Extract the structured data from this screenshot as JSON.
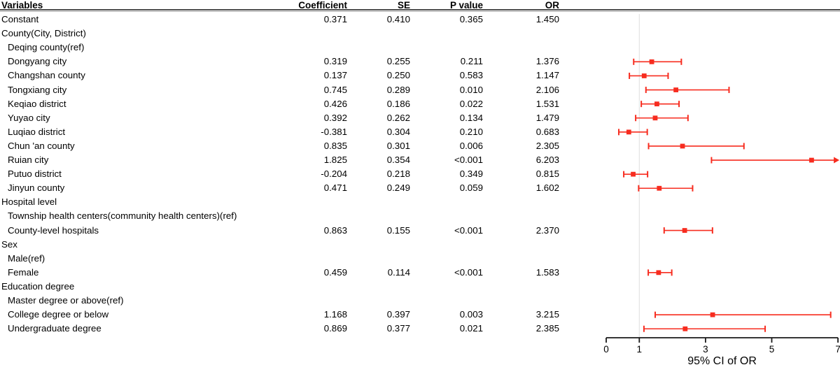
{
  "table": {
    "columns": [
      "Variables",
      "Coefficient",
      "SE",
      "P value",
      "OR"
    ],
    "rows": [
      {
        "label": "Constant",
        "indent": 0,
        "coefficient": "0.371",
        "se": "0.410",
        "p": "0.365",
        "or": "1.450"
      },
      {
        "label": "County(City, District)",
        "indent": 0
      },
      {
        "label": "Deqing county(ref)",
        "indent": 1
      },
      {
        "label": "Dongyang city",
        "indent": 1,
        "coefficient": "0.319",
        "se": "0.255",
        "p": "0.211",
        "or": "1.376"
      },
      {
        "label": "Changshan county",
        "indent": 1,
        "coefficient": "0.137",
        "se": "0.250",
        "p": "0.583",
        "or": "1.147"
      },
      {
        "label": "Tongxiang city",
        "indent": 1,
        "coefficient": "0.745",
        "se": "0.289",
        "p": "0.010",
        "or": "2.106"
      },
      {
        "label": "Keqiao district",
        "indent": 1,
        "coefficient": "0.426",
        "se": "0.186",
        "p": "0.022",
        "or": "1.531"
      },
      {
        "label": "Yuyao city",
        "indent": 1,
        "coefficient": "0.392",
        "se": "0.262",
        "p": "0.134",
        "or": "1.479"
      },
      {
        "label": "Luqiao district",
        "indent": 1,
        "coefficient": "-0.381",
        "se": "0.304",
        "p": "0.210",
        "or": "0.683"
      },
      {
        "label": "Chun 'an county",
        "indent": 1,
        "coefficient": "0.835",
        "se": "0.301",
        "p": "0.006",
        "or": "2.305"
      },
      {
        "label": "Ruian city",
        "indent": 1,
        "coefficient": "1.825",
        "se": "0.354",
        "p": "<0.001",
        "or": "6.203"
      },
      {
        "label": "Putuo district",
        "indent": 1,
        "coefficient": "-0.204",
        "se": "0.218",
        "p": "0.349",
        "or": "0.815"
      },
      {
        "label": "Jinyun county",
        "indent": 1,
        "coefficient": "0.471",
        "se": "0.249",
        "p": "0.059",
        "or": "1.602"
      },
      {
        "label": "Hospital level",
        "indent": 0
      },
      {
        "label": "Township health centers(community health centers)(ref)",
        "indent": 1
      },
      {
        "label": "County-level hospitals",
        "indent": 1,
        "coefficient": "0.863",
        "se": "0.155",
        "p": "<0.001",
        "or": "2.370"
      },
      {
        "label": "Sex",
        "indent": 0
      },
      {
        "label": "Male(ref)",
        "indent": 1
      },
      {
        "label": "Female",
        "indent": 1,
        "coefficient": "0.459",
        "se": "0.114",
        "p": "<0.001",
        "or": "1.583"
      },
      {
        "label": "Education degree",
        "indent": 0
      },
      {
        "label": "Master degree or above(ref)",
        "indent": 1
      },
      {
        "label": "College degree or below",
        "indent": 1,
        "coefficient": "1.168",
        "se": "0.397",
        "p": "0.003",
        "or": "3.215"
      },
      {
        "label": "Undergraduate degree",
        "indent": 1,
        "coefficient": "0.869",
        "se": "0.377",
        "p": "0.021",
        "or": "2.385"
      }
    ]
  },
  "chart_data": {
    "type": "scatter",
    "subtype": "forest-plot",
    "xlabel": "95% CI of OR",
    "xlim": [
      0,
      7
    ],
    "xticks": [
      0,
      1,
      3,
      5,
      7
    ],
    "reference_line_x": 1,
    "legend": "none",
    "points": [
      {
        "row_index": 3,
        "label": "Dongyang city",
        "or": 1.376,
        "ci_low": 0.83,
        "ci_high": 2.27
      },
      {
        "row_index": 4,
        "label": "Changshan county",
        "or": 1.147,
        "ci_low": 0.7,
        "ci_high": 1.87
      },
      {
        "row_index": 5,
        "label": "Tongxiang city",
        "or": 2.106,
        "ci_low": 1.2,
        "ci_high": 3.71
      },
      {
        "row_index": 6,
        "label": "Keqiao district",
        "or": 1.531,
        "ci_low": 1.06,
        "ci_high": 2.2
      },
      {
        "row_index": 7,
        "label": "Yuyao city",
        "or": 1.479,
        "ci_low": 0.89,
        "ci_high": 2.47
      },
      {
        "row_index": 8,
        "label": "Luqiao district",
        "or": 0.683,
        "ci_low": 0.38,
        "ci_high": 1.24
      },
      {
        "row_index": 9,
        "label": "Chun 'an county",
        "or": 2.305,
        "ci_low": 1.28,
        "ci_high": 4.16
      },
      {
        "row_index": 10,
        "label": "Ruian city",
        "or": 6.203,
        "ci_low": 3.18,
        "ci_high": 12.41,
        "clipped_high": true
      },
      {
        "row_index": 11,
        "label": "Putuo district",
        "or": 0.815,
        "ci_low": 0.53,
        "ci_high": 1.25
      },
      {
        "row_index": 12,
        "label": "Jinyun county",
        "or": 1.602,
        "ci_low": 0.98,
        "ci_high": 2.61
      },
      {
        "row_index": 15,
        "label": "County-level hospitals",
        "or": 2.37,
        "ci_low": 1.75,
        "ci_high": 3.21
      },
      {
        "row_index": 18,
        "label": "Female",
        "or": 1.583,
        "ci_low": 1.27,
        "ci_high": 1.98
      },
      {
        "row_index": 21,
        "label": "College degree or below",
        "or": 3.215,
        "ci_low": 1.48,
        "ci_high": 6.78
      },
      {
        "row_index": 22,
        "label": "Undergraduate degree",
        "or": 2.385,
        "ci_low": 1.14,
        "ci_high": 4.8
      }
    ]
  },
  "colors": {
    "bar": "#f72c1f",
    "reference_line": "#e4e4e4",
    "axis": "#1a1a1a",
    "header_rule_dark": "#4d4d4d",
    "header_rule_light": "#b0b0b0"
  }
}
